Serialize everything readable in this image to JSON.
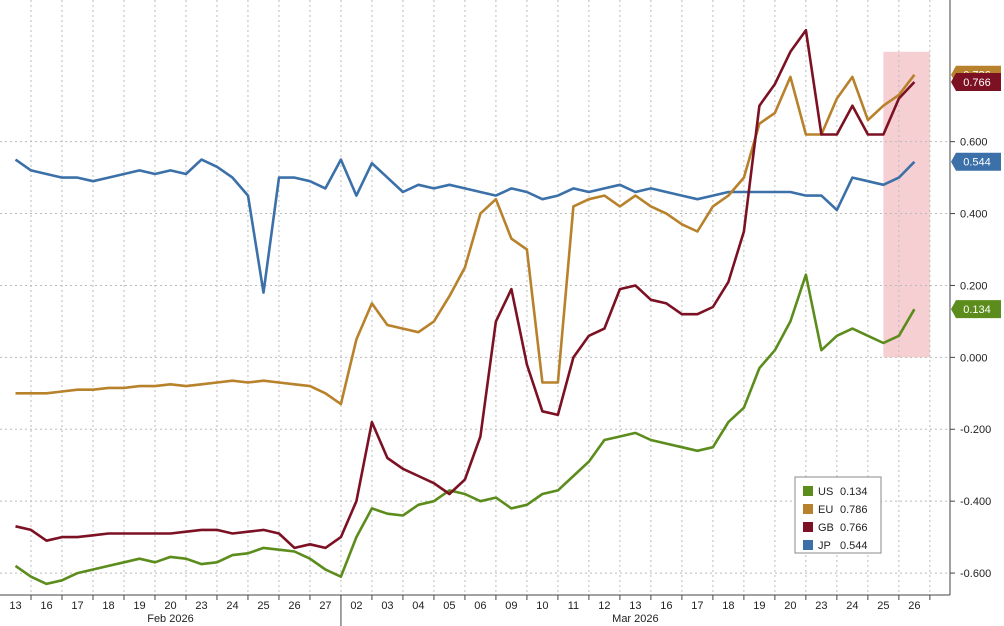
{
  "chart_data": {
    "type": "line",
    "x": [
      0,
      0.5,
      1,
      1.5,
      2,
      2.5,
      3,
      3.5,
      4,
      4.5,
      5,
      5.5,
      6,
      6.5,
      7,
      7.5,
      8,
      8.5,
      9,
      9.5,
      10,
      10.5,
      11,
      11.5,
      12,
      12.5,
      13,
      13.5,
      14,
      14.5,
      15,
      15.5,
      16,
      16.5,
      17,
      17.5,
      18,
      18.5,
      19,
      19.5,
      20,
      20.5,
      21,
      21.5,
      22,
      22.5,
      23,
      23.5,
      24,
      24.5,
      25,
      25.5,
      26,
      26.5,
      27,
      27.5,
      28,
      28.5,
      29
    ],
    "xlim": [
      -0.5,
      30.15
    ],
    "xticks": [
      {
        "value": 0,
        "label": "13"
      },
      {
        "value": 1,
        "label": "16"
      },
      {
        "value": 2,
        "label": "17"
      },
      {
        "value": 3,
        "label": "18"
      },
      {
        "value": 4,
        "label": "19"
      },
      {
        "value": 5,
        "label": "20"
      },
      {
        "value": 6,
        "label": "23"
      },
      {
        "value": 7,
        "label": "24"
      },
      {
        "value": 8,
        "label": "25"
      },
      {
        "value": 9,
        "label": "26"
      },
      {
        "value": 10,
        "label": "27"
      },
      {
        "value": 11,
        "label": "02"
      },
      {
        "value": 12,
        "label": "03"
      },
      {
        "value": 13,
        "label": "04"
      },
      {
        "value": 14,
        "label": "05"
      },
      {
        "value": 15,
        "label": "06"
      },
      {
        "value": 16,
        "label": "09"
      },
      {
        "value": 17,
        "label": "10"
      },
      {
        "value": 18,
        "label": "11"
      },
      {
        "value": 19,
        "label": "12"
      },
      {
        "value": 20,
        "label": "13"
      },
      {
        "value": 21,
        "label": "16"
      },
      {
        "value": 22,
        "label": "17"
      },
      {
        "value": 23,
        "label": "18"
      },
      {
        "value": 24,
        "label": "19"
      },
      {
        "value": 25,
        "label": "20"
      },
      {
        "value": 26,
        "label": "23"
      },
      {
        "value": 27,
        "label": "24"
      },
      {
        "value": 28,
        "label": "25"
      },
      {
        "value": 29,
        "label": "26"
      }
    ],
    "xgroups": [
      {
        "label": "Feb 2026",
        "start": 0,
        "end": 10
      },
      {
        "label": "Mar 2026",
        "start": 11,
        "end": 29
      }
    ],
    "ylim": [
      -0.661,
      0.994
    ],
    "yticks": [
      {
        "value": 0.6,
        "label": "0.600"
      },
      {
        "value": 0.4,
        "label": "0.400"
      },
      {
        "value": 0.2,
        "label": "0.200"
      },
      {
        "value": 0,
        "label": "0.000"
      },
      {
        "value": -0.2,
        "label": "-0.200"
      },
      {
        "value": -0.4,
        "label": "-0.400"
      },
      {
        "value": -0.6,
        "label": "-0.600"
      }
    ],
    "grid": true,
    "highlight": {
      "xrange": [
        28,
        29.5
      ],
      "yrange": [
        0,
        0.85
      ],
      "color": "#f6cfd2"
    },
    "series": [
      {
        "name": "US",
        "color": "#5b8c1c",
        "values": [
          -0.58,
          -0.61,
          -0.63,
          -0.62,
          -0.6,
          -0.59,
          -0.58,
          -0.57,
          -0.56,
          -0.57,
          -0.555,
          -0.56,
          -0.575,
          -0.57,
          -0.55,
          -0.545,
          -0.53,
          -0.535,
          -0.54,
          -0.56,
          -0.59,
          -0.61,
          -0.5,
          -0.42,
          -0.435,
          -0.44,
          -0.41,
          -0.4,
          -0.37,
          -0.38,
          -0.4,
          -0.39,
          -0.42,
          -0.41,
          -0.38,
          -0.37,
          -0.33,
          -0.29,
          -0.23,
          -0.22,
          -0.21,
          -0.23,
          -0.24,
          -0.25,
          -0.26,
          -0.25,
          -0.18,
          -0.14,
          -0.03,
          0.02,
          0.1,
          0.23,
          0.02,
          0.06,
          0.08,
          0.06,
          0.04,
          0.06,
          0.134
        ]
      },
      {
        "name": "EU",
        "color": "#b8812b",
        "values": [
          -0.1,
          -0.1,
          -0.1,
          -0.095,
          -0.09,
          -0.09,
          -0.085,
          -0.085,
          -0.08,
          -0.08,
          -0.075,
          -0.08,
          -0.075,
          -0.07,
          -0.065,
          -0.07,
          -0.065,
          -0.07,
          -0.075,
          -0.08,
          -0.1,
          -0.13,
          0.05,
          0.15,
          0.09,
          0.08,
          0.07,
          0.1,
          0.17,
          0.25,
          0.4,
          0.44,
          0.33,
          0.3,
          -0.07,
          -0.07,
          0.42,
          0.44,
          0.45,
          0.42,
          0.45,
          0.42,
          0.4,
          0.37,
          0.35,
          0.42,
          0.45,
          0.5,
          0.65,
          0.68,
          0.78,
          0.62,
          0.62,
          0.72,
          0.78,
          0.66,
          0.7,
          0.73,
          0.786
        ]
      },
      {
        "name": "GB",
        "color": "#7b1122",
        "values": [
          -0.47,
          -0.48,
          -0.51,
          -0.5,
          -0.5,
          -0.495,
          -0.49,
          -0.49,
          -0.49,
          -0.49,
          -0.49,
          -0.485,
          -0.48,
          -0.48,
          -0.49,
          -0.485,
          -0.48,
          -0.49,
          -0.53,
          -0.52,
          -0.53,
          -0.5,
          -0.4,
          -0.18,
          -0.28,
          -0.31,
          -0.33,
          -0.35,
          -0.38,
          -0.34,
          -0.22,
          0.1,
          0.19,
          -0.02,
          -0.15,
          -0.16,
          0,
          0.06,
          0.08,
          0.19,
          0.2,
          0.16,
          0.15,
          0.12,
          0.12,
          0.14,
          0.21,
          0.35,
          0.7,
          0.76,
          0.85,
          0.91,
          0.62,
          0.62,
          0.7,
          0.62,
          0.62,
          0.72,
          0.766
        ]
      },
      {
        "name": "JP",
        "color": "#3b70a9",
        "values": [
          0.55,
          0.52,
          0.51,
          0.5,
          0.5,
          0.49,
          0.5,
          0.51,
          0.52,
          0.51,
          0.52,
          0.51,
          0.55,
          0.53,
          0.5,
          0.45,
          0.18,
          0.5,
          0.5,
          0.49,
          0.47,
          0.55,
          0.45,
          0.54,
          0.5,
          0.46,
          0.48,
          0.47,
          0.48,
          0.47,
          0.46,
          0.45,
          0.47,
          0.46,
          0.44,
          0.45,
          0.47,
          0.46,
          0.47,
          0.48,
          0.46,
          0.47,
          0.46,
          0.45,
          0.44,
          0.45,
          0.46,
          0.46,
          0.46,
          0.46,
          0.46,
          0.45,
          0.45,
          0.41,
          0.5,
          0.49,
          0.48,
          0.5,
          0.544
        ]
      }
    ]
  }
}
